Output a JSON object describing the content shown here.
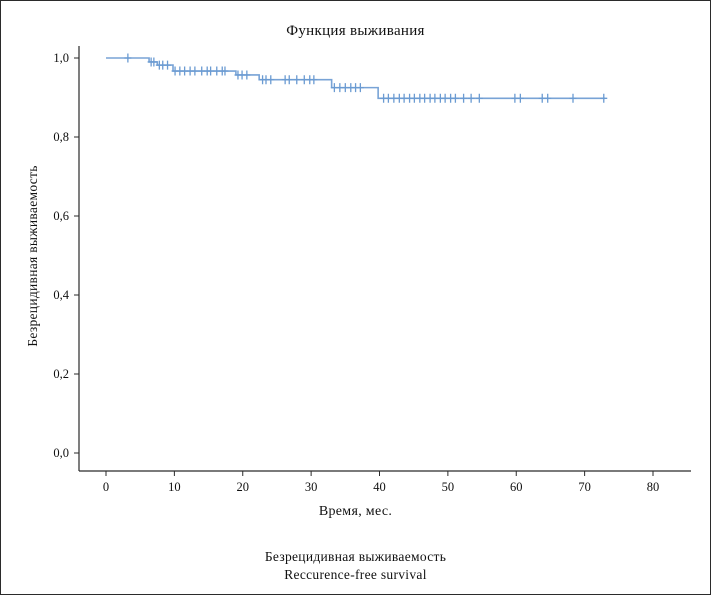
{
  "figure": {
    "title": "Функция выживания",
    "x_axis_label": "Время, мес.",
    "y_axis_label": "Безрецидивная выживаемость",
    "caption_line1": "Безрецидивная выживаемость",
    "caption_line2": "Reccurence-free survival"
  },
  "chart_data": {
    "type": "line",
    "subtype": "kaplan-meier-step-function",
    "title": "Функция выживания",
    "xlabel": "Время, мес.",
    "ylabel": "Безрецидивная выживаемость",
    "xlim": [
      -4,
      84
    ],
    "ylim": [
      0.0,
      1.05
    ],
    "grid": false,
    "legend": "none",
    "line_color": "#78a3d6",
    "censor_color": "#6b9bd2",
    "axis_color": "#2a2a2a",
    "x_ticks": [
      0,
      10,
      20,
      30,
      40,
      50,
      60,
      70,
      80
    ],
    "y_ticks": [
      {
        "v": 1.0,
        "label": "1,0"
      },
      {
        "v": 0.8,
        "label": "0,8"
      },
      {
        "v": 0.6,
        "label": "0,6"
      },
      {
        "v": 0.4,
        "label": "0,4"
      },
      {
        "v": 0.2,
        "label": "0,2"
      },
      {
        "v": 0.0,
        "label": "0,0"
      }
    ],
    "steps": [
      {
        "t": 0.0,
        "s": 1.0
      },
      {
        "t": 6.3,
        "s": 0.99
      },
      {
        "t": 7.5,
        "s": 0.982
      },
      {
        "t": 9.8,
        "s": 0.967
      },
      {
        "t": 19.0,
        "s": 0.957
      },
      {
        "t": 22.4,
        "s": 0.945
      },
      {
        "t": 33.0,
        "s": 0.925
      },
      {
        "t": 39.8,
        "s": 0.898
      }
    ],
    "end_time": 73.0,
    "censor_times": [
      3.2,
      6.6,
      7.0,
      7.8,
      8.3,
      9.0,
      10.1,
      10.8,
      11.5,
      12.3,
      13.0,
      14.0,
      14.8,
      15.3,
      16.2,
      17.0,
      17.4,
      19.3,
      19.9,
      20.6,
      22.9,
      23.4,
      24.1,
      26.2,
      26.8,
      27.9,
      29.0,
      29.8,
      30.4,
      33.4,
      34.2,
      35.0,
      35.8,
      36.5,
      37.2,
      40.6,
      41.3,
      42.1,
      42.9,
      43.6,
      44.4,
      45.1,
      45.9,
      46.6,
      47.4,
      48.1,
      48.9,
      49.6,
      50.4,
      51.1,
      52.3,
      53.4,
      54.6,
      59.8,
      60.6,
      63.8,
      64.6,
      68.3,
      72.8
    ]
  }
}
